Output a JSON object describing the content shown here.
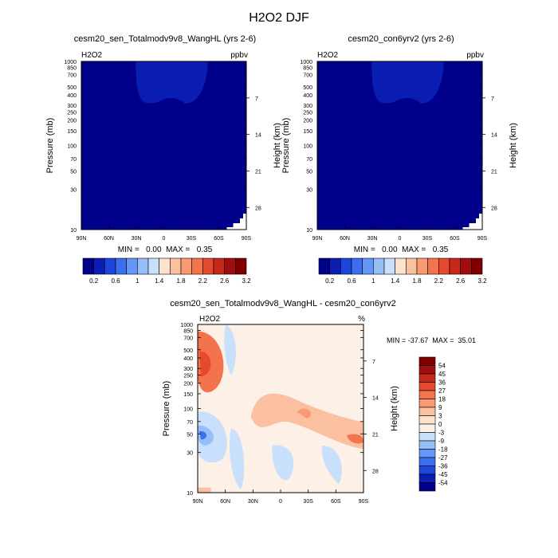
{
  "figure_title": "H2O2 DJF",
  "chart_data": [
    {
      "type": "heatmap",
      "title": "cesm20_sen_Totalmodv9v8_WangHL (yrs 2-6)",
      "left_label": "H2O2",
      "right_label": "ppbv",
      "xlabel": "",
      "ylabel": "Pressure (mb)",
      "ylabel_right": "Height (km)",
      "x_ticks": [
        "90N",
        "60N",
        "30N",
        "0",
        "30S",
        "60S",
        "90S"
      ],
      "y_ticks": [
        "10",
        "30",
        "50",
        "70",
        "100",
        "150",
        "200",
        "250",
        "300",
        "400",
        "500",
        "700",
        "850",
        "1000"
      ],
      "y_ticks_right": [
        "28",
        "21",
        "14",
        "7"
      ],
      "stats": "MIN =   0.00  MAX =   0.35",
      "colorbar_labels": [
        "0.2",
        "0.6",
        "1",
        "1.4",
        "1.8",
        "2.2",
        "2.6",
        "3.2"
      ],
      "colorbar_colors": [
        "#00008b",
        "#0a1eb4",
        "#1e46dc",
        "#3c6ef0",
        "#6496f5",
        "#96bef9",
        "#c8e0fb",
        "#fde2cf",
        "#fbc0a0",
        "#f89a72",
        "#f3734c",
        "#e44a2e",
        "#c8281a",
        "#a00f0f",
        "#800000"
      ],
      "background_value": "0.2",
      "feature": "H2O2 enhancement (0.2-0.6 ppbv) in lower tropical troposphere, 400-850 mb"
    },
    {
      "type": "heatmap",
      "title": "cesm20_con6yrv2 (yrs 2-6)",
      "left_label": "H2O2",
      "right_label": "ppbv",
      "xlabel": "",
      "ylabel": "Pressure (mb)",
      "ylabel_right": "Height (km)",
      "x_ticks": [
        "90N",
        "60N",
        "30N",
        "0",
        "30S",
        "60S",
        "90S"
      ],
      "y_ticks": [
        "10",
        "30",
        "50",
        "70",
        "100",
        "150",
        "200",
        "250",
        "300",
        "400",
        "500",
        "700",
        "850",
        "1000"
      ],
      "y_ticks_right": [
        "28",
        "21",
        "14",
        "7"
      ],
      "stats": "MIN =   0.00  MAX =   0.35",
      "colorbar_labels": [
        "0.2",
        "0.6",
        "1",
        "1.4",
        "1.8",
        "2.2",
        "2.6",
        "3.2"
      ],
      "colorbar_colors": [
        "#00008b",
        "#0a1eb4",
        "#1e46dc",
        "#3c6ef0",
        "#6496f5",
        "#96bef9",
        "#c8e0fb",
        "#fde2cf",
        "#fbc0a0",
        "#f89a72",
        "#f3734c",
        "#e44a2e",
        "#c8281a",
        "#a00f0f",
        "#800000"
      ],
      "background_value": "0.2",
      "feature": "H2O2 enhancement (0.2-0.6 ppbv) in lower tropical troposphere, 400-850 mb"
    },
    {
      "type": "heatmap",
      "title": "cesm20_sen_Totalmodv9v8_WangHL - cesm20_con6yrv2",
      "left_label": "H2O2",
      "right_label": "%",
      "xlabel": "",
      "ylabel": "Pressure (mb)",
      "ylabel_right": "Height (km)",
      "x_ticks": [
        "90N",
        "60N",
        "30N",
        "0",
        "30S",
        "60S",
        "90S"
      ],
      "y_ticks": [
        "10",
        "30",
        "50",
        "70",
        "100",
        "150",
        "200",
        "250",
        "300",
        "400",
        "500",
        "700",
        "850",
        "1000"
      ],
      "y_ticks_right": [
        "28",
        "21",
        "14",
        "7"
      ],
      "stats": "MIN = -37.67  MAX =  35.01",
      "colorbar_labels": [
        "54",
        "45",
        "36",
        "27",
        "18",
        "9",
        "3",
        "0",
        "-3",
        "-9",
        "-18",
        "-27",
        "-36",
        "-45",
        "-54"
      ],
      "colorbar_colors": [
        "#800000",
        "#a00f0f",
        "#c8281a",
        "#e44a2e",
        "#f3734c",
        "#f89a72",
        "#fbc0a0",
        "#fde2cf",
        "#fdf0e6",
        "#c8e0fb",
        "#96bef9",
        "#6496f5",
        "#3c6ef0",
        "#1e46dc",
        "#0a1eb4",
        "#00008b"
      ],
      "background_value": "0 to 3"
    }
  ]
}
